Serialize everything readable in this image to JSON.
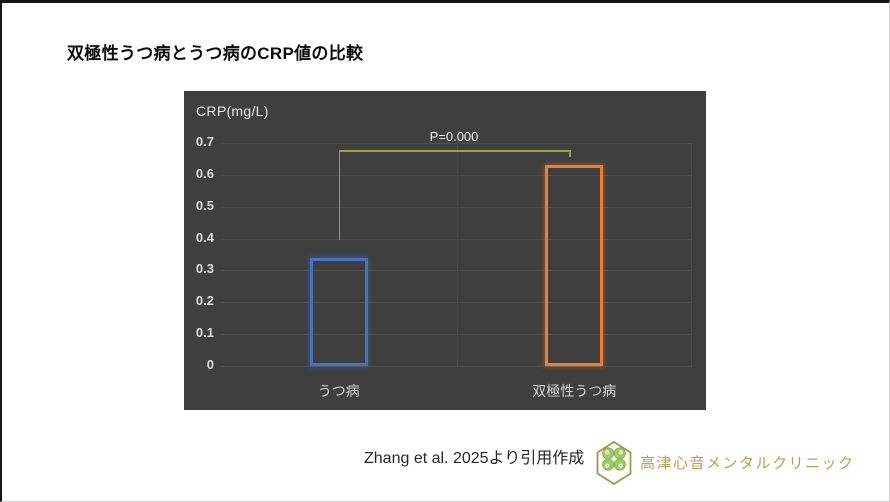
{
  "title": "双極性うつ病とうつ病のCRP値の比較",
  "chart_data": {
    "type": "bar",
    "title": "双極性うつ病とうつ病のCRP値の比較",
    "ylabel": "CRP(mg/L)",
    "categories": [
      "うつ病",
      "双極性うつ病"
    ],
    "values": [
      0.34,
      0.63
    ],
    "series_colors": [
      "#4472C4",
      "#ED7D31"
    ],
    "bar_fill": "none",
    "background_color": "#3f3f3f",
    "ylim": [
      0,
      0.7
    ],
    "yticks": [
      "0",
      "0.1",
      "0.2",
      "0.3",
      "0.4",
      "0.5",
      "0.6",
      "0.7"
    ],
    "grid": true,
    "legend": "none",
    "bracket": {
      "text": "P=0.000",
      "color": "#9aa23f",
      "left_bottom_value": 0.395,
      "top_value": 0.678,
      "right_bottom_value": 0.655
    }
  },
  "footer": {
    "citation": "Zhang et al. 2025より引用作成",
    "logo_icon": "hexagon-clover-icon",
    "clinic_name": "高津心音メンタルクリニック",
    "gold_color": "#a8964a",
    "green_color": "#8cbf56"
  }
}
